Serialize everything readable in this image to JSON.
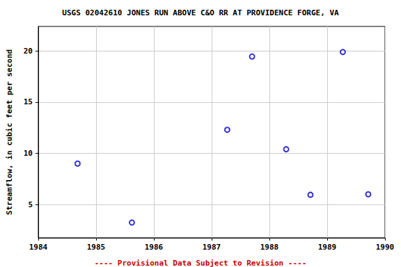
{
  "chart_data": {
    "type": "scatter",
    "title": "USGS 02042610 JONES RUN ABOVE C&O RR AT PROVIDENCE FORGE, VA",
    "y_label": "Streamflow, in cubic feet per second",
    "footer": "---- Provisional Data Subject to Revision ----",
    "x": [
      1984.68,
      1985.62,
      1987.27,
      1987.7,
      1988.29,
      1988.71,
      1989.27,
      1989.71
    ],
    "values": [
      9.0,
      3.24,
      12.3,
      19.46,
      10.4,
      5.95,
      19.9,
      6.0
    ],
    "color": "#0000cc",
    "marker": "circle-open",
    "xlim": [
      1984,
      1990
    ],
    "xticks": [
      1984,
      1985,
      1986,
      1987,
      1988,
      1989,
      1990
    ],
    "ylim": [
      1.75,
      22.4
    ],
    "yticks": [
      5,
      10,
      15,
      20
    ],
    "grid": true
  }
}
